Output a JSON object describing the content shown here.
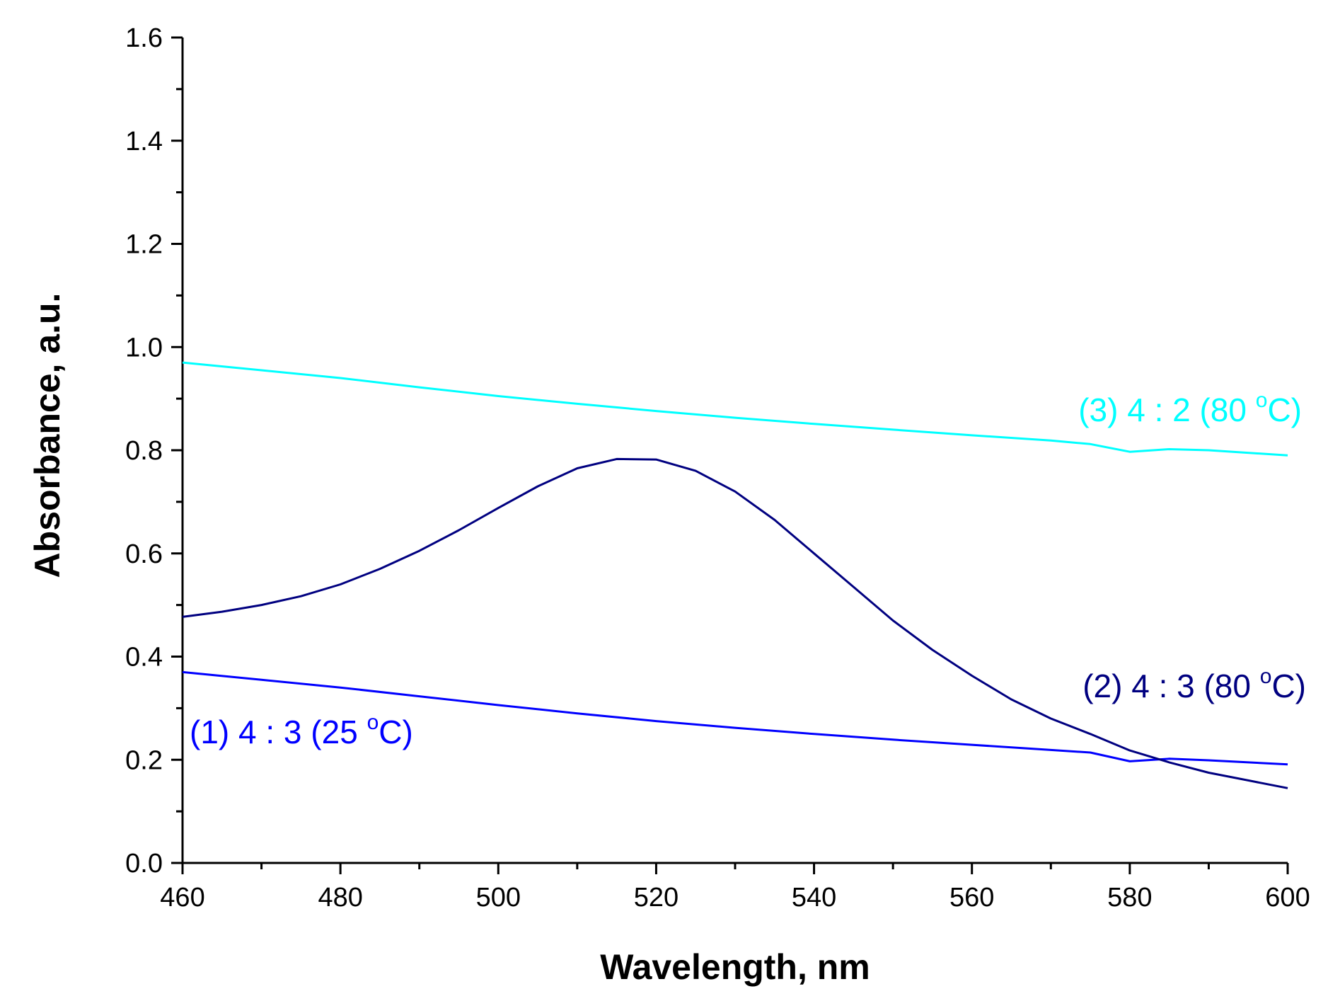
{
  "chart_data": {
    "type": "line",
    "xlabel": "Wavelength, nm",
    "ylabel": "Absorbance, a.u.",
    "xlim": [
      460,
      600
    ],
    "ylim": [
      0.0,
      1.6
    ],
    "x_ticks": [
      "460",
      "480",
      "500",
      "520",
      "540",
      "560",
      "580",
      "600"
    ],
    "y_ticks": [
      "0.0",
      "0.2",
      "0.4",
      "0.6",
      "0.8",
      "1.0",
      "1.2",
      "1.4",
      "1.6"
    ],
    "grid": false,
    "legend": "none",
    "series": [
      {
        "name": "(1) 4 : 3 (25 °C)",
        "label_parts": [
          "(1) 4 : 3 (25 ",
          "o",
          "C)"
        ],
        "color": "#0000ff",
        "x": [
          460,
          470,
          480,
          490,
          500,
          510,
          520,
          530,
          540,
          550,
          560,
          570,
          575,
          580,
          585,
          590,
          600
        ],
        "y": [
          0.37,
          0.355,
          0.34,
          0.323,
          0.306,
          0.29,
          0.275,
          0.262,
          0.25,
          0.239,
          0.229,
          0.219,
          0.214,
          0.197,
          0.202,
          0.199,
          0.191
        ]
      },
      {
        "name": "(2) 4 : 3 (80 °C)",
        "label_parts": [
          "(2) 4 : 3 (80 ",
          "o",
          "C)"
        ],
        "color": "#000080",
        "x": [
          460,
          465,
          470,
          475,
          480,
          485,
          490,
          495,
          500,
          505,
          510,
          515,
          520,
          525,
          530,
          535,
          540,
          545,
          550,
          555,
          560,
          565,
          570,
          575,
          580,
          585,
          590,
          595,
          600
        ],
        "y": [
          0.477,
          0.487,
          0.5,
          0.517,
          0.54,
          0.57,
          0.605,
          0.645,
          0.688,
          0.73,
          0.765,
          0.783,
          0.782,
          0.76,
          0.72,
          0.665,
          0.6,
          0.535,
          0.47,
          0.413,
          0.363,
          0.317,
          0.28,
          0.25,
          0.218,
          0.195,
          0.175,
          0.16,
          0.145
        ]
      },
      {
        "name": "(3) 4 : 2 (80 °C)",
        "label_parts": [
          "(3) 4 : 2 (80 ",
          "o",
          "C)"
        ],
        "color": "#00ffff",
        "x": [
          460,
          470,
          480,
          490,
          500,
          510,
          520,
          530,
          540,
          550,
          560,
          570,
          575,
          580,
          585,
          590,
          600
        ],
        "y": [
          0.97,
          0.955,
          0.94,
          0.922,
          0.905,
          0.89,
          0.876,
          0.863,
          0.851,
          0.84,
          0.829,
          0.819,
          0.812,
          0.797,
          0.802,
          0.8,
          0.79
        ]
      }
    ]
  }
}
